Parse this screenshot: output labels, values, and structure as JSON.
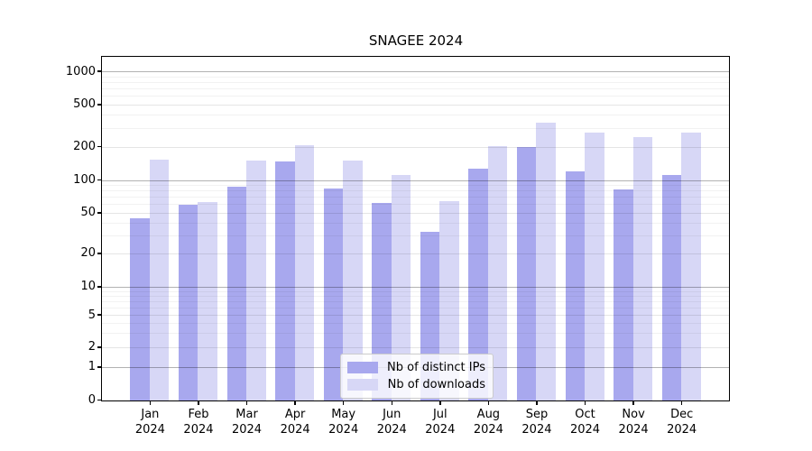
{
  "title": "SNAGEE 2024",
  "chart_data": {
    "type": "bar",
    "title": "SNAGEE 2024",
    "categories": [
      "Jan",
      "Feb",
      "Mar",
      "Apr",
      "May",
      "Jun",
      "Jul",
      "Aug",
      "Sep",
      "Oct",
      "Nov",
      "Dec"
    ],
    "category_year": "2024",
    "series": [
      {
        "name": "Nb of distinct IPs",
        "color": "#a8a8ee",
        "values": [
          45,
          60,
          87,
          149,
          84,
          62,
          33,
          128,
          199,
          121,
          82,
          112
        ]
      },
      {
        "name": "Nb of downloads",
        "color": "#d7d7f6",
        "values": [
          155,
          63,
          150,
          207,
          150,
          111,
          65,
          203,
          343,
          272,
          248,
          275
        ]
      }
    ],
    "y_axis": {
      "scale": "log-like with 0 baseline",
      "ticks": [
        0,
        1,
        2,
        5,
        10,
        20,
        50,
        100,
        200,
        500,
        1000
      ],
      "ylim": [
        0,
        1400
      ]
    },
    "x_axis": {
      "label_line2": "2024"
    },
    "legend": {
      "position": "bottom-center-inside",
      "entries": [
        "Nb of distinct IPs",
        "Nb of downloads"
      ]
    },
    "grid": true,
    "colors": {
      "bar_distinct_ips": "#a8a8ee",
      "bar_downloads": "#d7d7f6",
      "axis": "#000000"
    }
  }
}
